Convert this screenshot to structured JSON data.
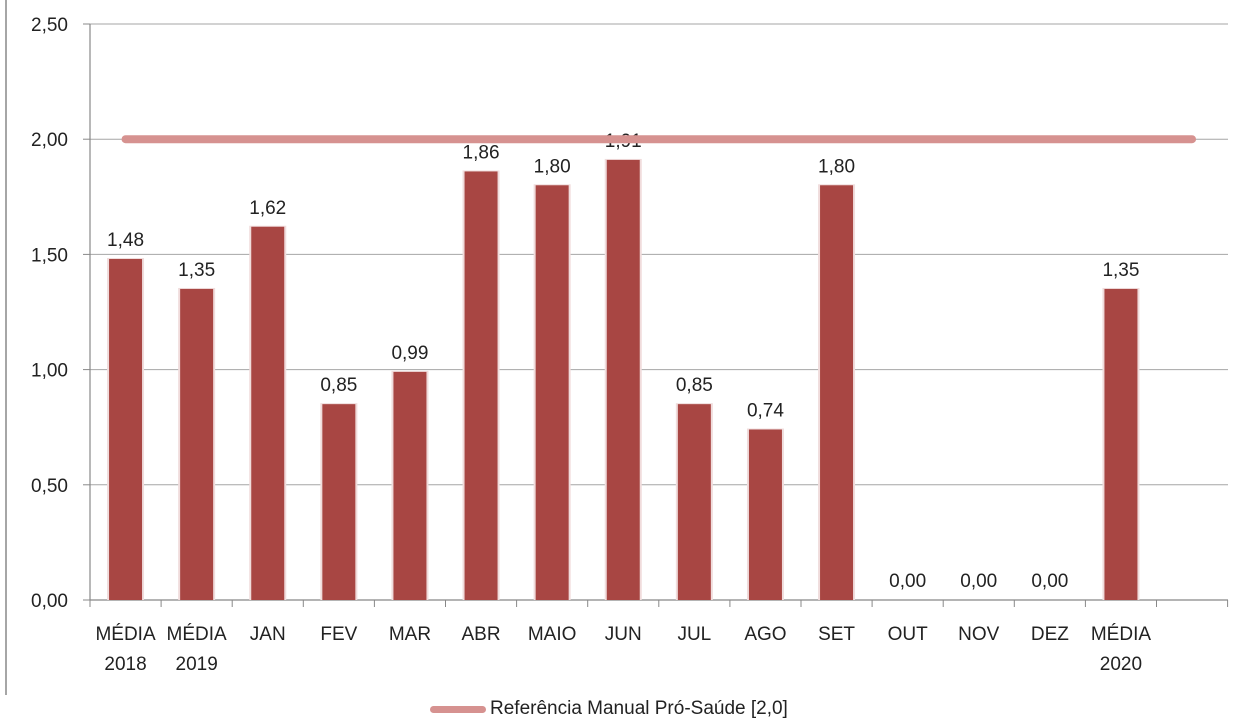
{
  "chart_data": {
    "type": "bar",
    "categories": [
      [
        "MÉDIA",
        "2018"
      ],
      [
        "MÉDIA",
        "2019"
      ],
      [
        "JAN"
      ],
      [
        "FEV"
      ],
      [
        "MAR"
      ],
      [
        "ABR"
      ],
      [
        "MAIO"
      ],
      [
        "JUN"
      ],
      [
        "JUL"
      ],
      [
        "AGO"
      ],
      [
        "SET"
      ],
      [
        "OUT"
      ],
      [
        "NOV"
      ],
      [
        "DEZ"
      ],
      [
        "MÉDIA",
        "2020"
      ]
    ],
    "values": [
      1.48,
      1.35,
      1.62,
      0.85,
      0.99,
      1.86,
      1.8,
      1.91,
      0.85,
      0.74,
      1.8,
      0.0,
      0.0,
      0.0,
      1.35
    ],
    "data_labels": [
      "1,48",
      "1,35",
      "1,62",
      "0,85",
      "0,99",
      "1,86",
      "1,80",
      "1,91",
      "0,85",
      "0,74",
      "1,80",
      "0,00",
      "0,00",
      "0,00",
      "1,35"
    ],
    "ylim": [
      0,
      2.5
    ],
    "yticks": [
      0,
      0.5,
      1.0,
      1.5,
      2.0,
      2.5
    ],
    "ytick_labels": [
      "0,00",
      "0,50",
      "1,00",
      "1,50",
      "2,00",
      "2,50"
    ],
    "grid": true,
    "reference_line": {
      "value": 2.0,
      "name": "Referência Manual Pró-Saúde [2,0]",
      "color": "#d69290"
    },
    "legend_position": "bottom",
    "bar_color": "#a84643"
  }
}
